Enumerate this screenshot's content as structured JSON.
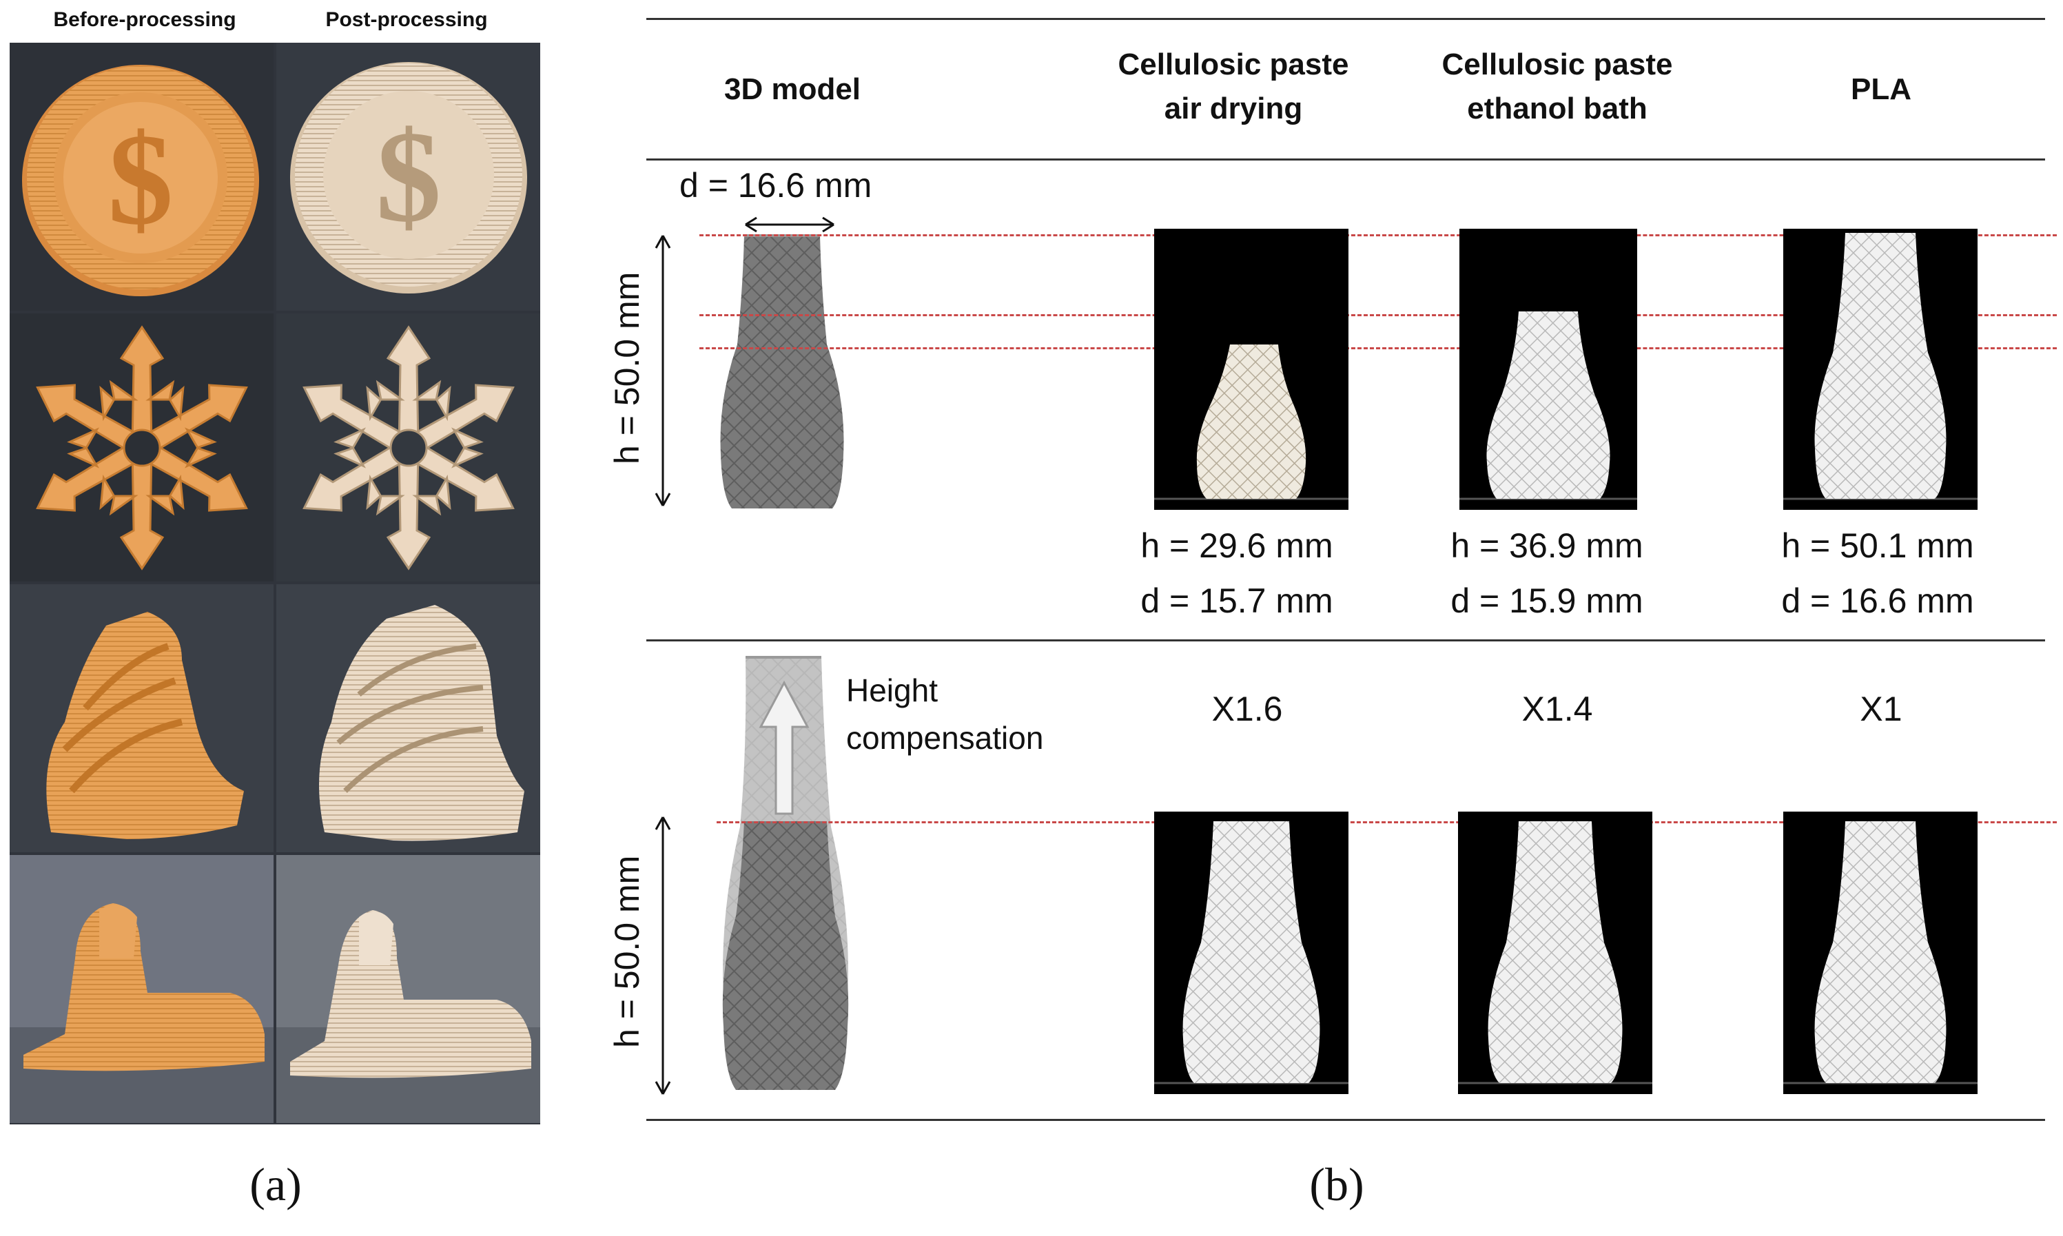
{
  "panel_a": {
    "before_label": "Before-processing",
    "after_label": "Post-processing",
    "caption": "(a)",
    "objects": [
      "coin-with-dollar-sign",
      "snowflake",
      "spiral-sculpture",
      "sphinx"
    ]
  },
  "panel_b": {
    "caption": "(b)",
    "headers": {
      "model": "3D model",
      "air_line1": "Cellulosic paste",
      "air_line2": "air drying",
      "eth_line1": "Cellulosic paste",
      "eth_line2": "ethanol bath",
      "pla": "PLA"
    },
    "model_diameter": "d = 16.6 mm",
    "model_height_top": "h = 50.0 mm",
    "model_height_bottom": "h = 50.0 mm",
    "compensation_line1": "Height",
    "compensation_line2": "compensation",
    "results": [
      {
        "h": "h = 29.6 mm",
        "d": "d = 15.7 mm",
        "factor": "X1.6"
      },
      {
        "h": "h = 36.9 mm",
        "d": "d = 15.9 mm",
        "factor": "X1.4"
      },
      {
        "h": "h = 50.1 mm",
        "d": "d = 16.6 mm",
        "factor": "X1"
      }
    ]
  },
  "colors": {
    "orange": "#e6a25a",
    "beige": "#e9d8c4",
    "model_gray": "#7d7d7d",
    "dash_red": "#c94848",
    "photo_bg": "#000000"
  }
}
